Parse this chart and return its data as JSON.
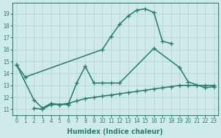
{
  "lines": [
    {
      "x": [
        0,
        1,
        10,
        11,
        12,
        13,
        14,
        15,
        16,
        17,
        18
      ],
      "y": [
        14.7,
        13.7,
        16.0,
        17.1,
        18.1,
        18.8,
        19.3,
        19.4,
        19.1,
        16.7,
        16.5
      ],
      "color": "#2d7d6f",
      "marker": "+",
      "linewidth": 1.2,
      "markersize": 4
    },
    {
      "x": [
        0,
        2,
        3,
        4,
        5,
        6,
        7,
        8,
        9,
        10,
        11,
        12,
        16,
        19,
        20,
        22,
        23
      ],
      "y": [
        14.7,
        11.8,
        11.1,
        11.5,
        11.4,
        11.4,
        13.2,
        14.6,
        13.2,
        13.2,
        13.2,
        13.2,
        16.1,
        14.5,
        13.3,
        12.8,
        12.9
      ],
      "color": "#2d7d6f",
      "marker": "+",
      "linewidth": 1.2,
      "markersize": 4
    },
    {
      "x": [
        2,
        3,
        4,
        5,
        6,
        7,
        8,
        9,
        10,
        11,
        12,
        13,
        14,
        15,
        16,
        17,
        18,
        19,
        20,
        21,
        22,
        23
      ],
      "y": [
        11.1,
        11.0,
        11.4,
        11.4,
        11.5,
        11.7,
        11.9,
        12.0,
        12.1,
        12.2,
        12.3,
        12.4,
        12.5,
        12.6,
        12.7,
        12.8,
        12.9,
        13.0,
        13.0,
        13.0,
        13.0,
        13.0
      ],
      "color": "#2d7d6f",
      "marker": "+",
      "linewidth": 1.2,
      "markersize": 4
    }
  ],
  "xlim": [
    -0.5,
    23.5
  ],
  "ylim": [
    10.5,
    19.9
  ],
  "yticks": [
    11,
    12,
    13,
    14,
    15,
    16,
    17,
    18,
    19
  ],
  "xticks": [
    0,
    1,
    2,
    3,
    4,
    5,
    6,
    7,
    8,
    9,
    10,
    11,
    12,
    13,
    14,
    15,
    16,
    17,
    18,
    19,
    20,
    21,
    22,
    23
  ],
  "xlabel": "Humidex (Indice chaleur)",
  "background_color": "#ceeaea",
  "grid_color": "#aed0d0",
  "axis_color": "#2d7d6f",
  "tick_color": "#2d7d6f",
  "label_color": "#2d7d6f",
  "tick_fontsize": 5.5,
  "xlabel_fontsize": 7
}
